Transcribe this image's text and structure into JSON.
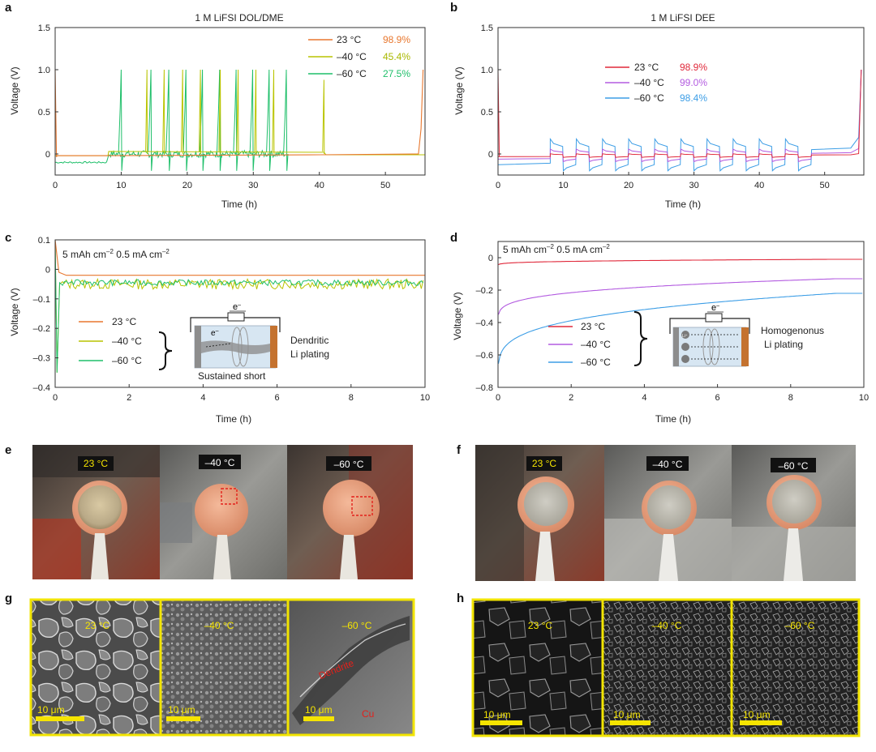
{
  "panels": {
    "a": {
      "letter": "a",
      "title": "1 M LiFSI DOL/DME",
      "xlabel": "Time (h)",
      "ylabel": "Voltage (V)",
      "legend": [
        {
          "name": "23 °C",
          "ce": "98.9%",
          "color": "#e8772e"
        },
        {
          "name": "–40 °C",
          "ce": "45.4%",
          "color": "#b9c400"
        },
        {
          "name": "–60 °C",
          "ce": "27.5%",
          "color": "#1fbf6a"
        }
      ]
    },
    "b": {
      "letter": "b",
      "title": "1 M LiFSI DEE",
      "xlabel": "Time (h)",
      "ylabel": "Voltage (V)",
      "legend": [
        {
          "name": "23 °C",
          "ce": "98.9%",
          "color": "#e0283a"
        },
        {
          "name": "–40 °C",
          "ce": "99.0%",
          "color": "#b35be0"
        },
        {
          "name": "–60 °C",
          "ce": "98.4%",
          "color": "#3d9ee6"
        }
      ]
    },
    "c": {
      "letter": "c",
      "annotation": "5 mAh cm",
      "annotation_sup": "–2",
      "annotation2": " 0.5 mA cm",
      "annotation2_sup": "–2",
      "xlabel": "Time (h)",
      "ylabel": "Voltage (V)",
      "legend": [
        {
          "name": "23 °C",
          "color": "#e8772e"
        },
        {
          "name": "–40 °C",
          "color": "#b9c400"
        },
        {
          "name": "–60 °C",
          "color": "#1fbf6a"
        }
      ],
      "schematic": {
        "electron": "e",
        "electron_sup": "–",
        "electron2": "e",
        "electron2_sup": "–",
        "label_right_1": "Dendritic",
        "label_right_2": "Li plating",
        "label_bottom": "Sustained short"
      }
    },
    "d": {
      "letter": "d",
      "annotation": "5 mAh cm",
      "annotation_sup": "–2",
      "annotation2": " 0.5 mA cm",
      "annotation2_sup": "–2",
      "xlabel": "Time (h)",
      "ylabel": "Voltage (V)",
      "legend": [
        {
          "name": "23 °C",
          "color": "#e0283a"
        },
        {
          "name": "–40 °C",
          "color": "#b35be0"
        },
        {
          "name": "–60 °C",
          "color": "#3d9ee6"
        }
      ],
      "schematic": {
        "electron": "e",
        "electron_sup": "–",
        "ion": "Li⁺",
        "label_right_1": "Homogenonus",
        "label_right_2": "Li plating"
      }
    },
    "e": {
      "letter": "e",
      "labels": [
        "23 °C",
        "–40 °C",
        "–60 °C"
      ]
    },
    "f": {
      "letter": "f",
      "labels": [
        "23 °C",
        "–40 °C",
        "–60 °C"
      ]
    },
    "g": {
      "letter": "g",
      "labels": [
        "23 °C",
        "–40 °C",
        "–60 °C"
      ],
      "scale_bar": "10 μm",
      "dendrite_label": "Dendrite",
      "cu_label": "Cu"
    },
    "h": {
      "letter": "h",
      "labels": [
        "23 °C",
        "–40 °C",
        "–60 °C"
      ],
      "scale_bar": "10 μm"
    }
  },
  "chart_data": [
    {
      "panel": "a",
      "type": "line",
      "title": "1 M LiFSI DOL/DME",
      "xlabel": "Time (h)",
      "ylabel": "Voltage (V)",
      "xlim": [
        0,
        56
      ],
      "ylim": [
        -0.25,
        1.5
      ],
      "xticks": [
        0,
        10,
        20,
        30,
        40,
        50
      ],
      "yticks": [
        0,
        0.5,
        1.0,
        1.5
      ],
      "ytick_labels": [
        "0",
        "0.5",
        "1.0",
        "1.5"
      ],
      "series": [
        {
          "name": "23 °C",
          "ce": "98.9%",
          "color": "#e8772e",
          "x": [
            0,
            0.2,
            0.4,
            8,
            40,
            55,
            55.4,
            55.7
          ],
          "y": [
            1.0,
            -0.03,
            -0.02,
            -0.02,
            -0.01,
            0.0,
            0.3,
            1.0
          ]
        },
        {
          "name": "–40 °C",
          "ce": "45.4%",
          "color": "#b9c400",
          "spikes": [
            13.9,
            16.5,
            19.3,
            22.0,
            25.0,
            27.7,
            30.4,
            33.1,
            40.7
          ],
          "baseline": [
            [
              0,
              -0.02
            ],
            [
              8,
              -0.02
            ],
            [
              8.1,
              0.03
            ],
            [
              40,
              0.02
            ],
            [
              40.7,
              0.02
            ],
            [
              41,
              -0.01
            ],
            [
              56,
              -0.01
            ]
          ]
        },
        {
          "name": "–60 °C",
          "ce": "27.5%",
          "color": "#1fbf6a",
          "spikes": [
            10.0,
            14.5,
            17.2,
            19.8,
            22.3,
            24.9,
            27.4,
            29.9,
            32.4,
            35.0
          ],
          "baseline": [
            [
              0,
              -0.1
            ],
            [
              8,
              -0.1
            ],
            [
              8.1,
              0.0
            ],
            [
              35,
              0.0
            ]
          ]
        }
      ]
    },
    {
      "panel": "b",
      "type": "line",
      "title": "1 M LiFSI DEE",
      "xlabel": "Time (h)",
      "ylabel": "Voltage (V)",
      "xlim": [
        0,
        56
      ],
      "ylim": [
        -0.25,
        1.5
      ],
      "xticks": [
        0,
        10,
        20,
        30,
        40,
        50
      ],
      "yticks": [
        0,
        0.5,
        1.0,
        1.5
      ],
      "ytick_labels": [
        "0",
        "0.5",
        "1.0",
        "1.5"
      ],
      "cycle_starts": [
        8,
        12,
        16,
        20,
        24,
        28,
        32,
        36,
        40,
        44
      ],
      "series": [
        {
          "name": "23 °C",
          "ce": "98.9%",
          "color": "#e0283a",
          "amplitude": 0.02,
          "base": -0.02
        },
        {
          "name": "–40 °C",
          "ce": "99.0%",
          "color": "#b35be0",
          "amplitude": 0.07,
          "base": -0.02
        },
        {
          "name": "–60 °C",
          "ce": "98.4%",
          "color": "#3d9ee6",
          "amplitude": 0.18,
          "base": -0.02
        }
      ]
    },
    {
      "panel": "c",
      "type": "line",
      "xlabel": "Time (h)",
      "ylabel": "Voltage (V)",
      "xlim": [
        0,
        10
      ],
      "ylim": [
        -0.4,
        0.1
      ],
      "xticks": [
        0,
        2,
        4,
        6,
        8,
        10
      ],
      "yticks": [
        -0.4,
        -0.3,
        -0.2,
        -0.1,
        0,
        0.1
      ],
      "ytick_labels": [
        "–0.4",
        "–0.3",
        "–0.2",
        "–0.1",
        "0",
        "0.1"
      ],
      "series": [
        {
          "name": "23 °C",
          "color": "#e8772e",
          "level": -0.02
        },
        {
          "name": "–40 °C",
          "color": "#b9c400",
          "level": -0.05
        },
        {
          "name": "–60 °C",
          "color": "#1fbf6a",
          "level": -0.045
        }
      ]
    },
    {
      "panel": "d",
      "type": "line",
      "xlabel": "Time (h)",
      "ylabel": "Voltage (V)",
      "xlim": [
        0,
        10
      ],
      "ylim": [
        -0.8,
        0.1
      ],
      "xticks": [
        0,
        2,
        4,
        6,
        8,
        10
      ],
      "yticks": [
        -0.8,
        -0.6,
        -0.4,
        -0.2,
        0
      ],
      "ytick_labels": [
        "–0.8",
        "–0.6",
        "–0.4",
        "–0.2",
        "0"
      ],
      "series": [
        {
          "name": "23 °C",
          "color": "#e0283a",
          "start": -0.05,
          "end": -0.01
        },
        {
          "name": "–40 °C",
          "color": "#b35be0",
          "start": -0.4,
          "end": -0.13
        },
        {
          "name": "–60 °C",
          "color": "#3d9ee6",
          "start": -0.75,
          "end": -0.22
        }
      ]
    }
  ]
}
